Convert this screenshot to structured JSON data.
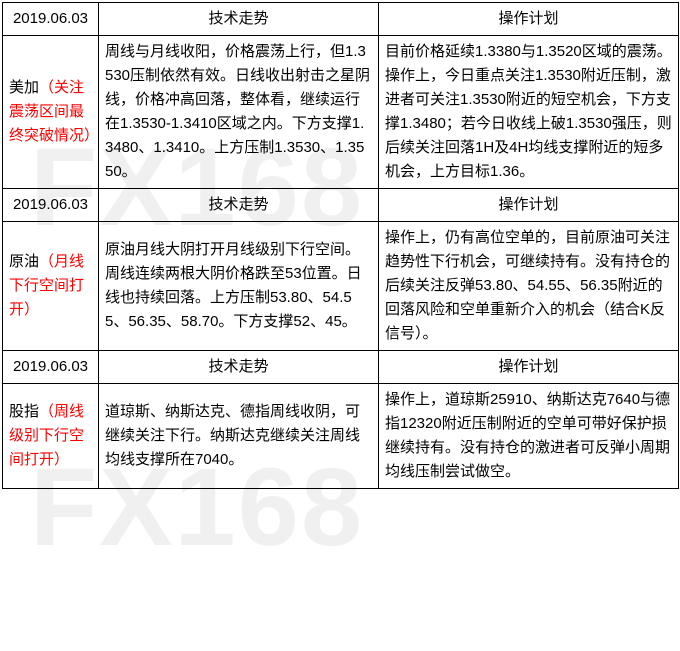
{
  "watermark_text": "FX168",
  "headers": {
    "tech": "技术走势",
    "plan": "操作计划"
  },
  "sections": [
    {
      "date": "2019.06.03",
      "label_black": "美加",
      "label_red": "（关注震荡区间最终突破情况）",
      "tech": "周线与月线收阳，价格震荡上行，但1.3530压制依然有效。日线收出射击之星阴线，价格冲高回落，整体看，继续运行在1.3530-1.3410区域之内。下方支撑1.3480、1.3410。上方压制1.3530、1.3550。",
      "plan": "目前价格延续1.3380与1.3520区域的震荡。操作上，今日重点关注1.3530附近压制，激进者可关注1.3530附近的短空机会，下方支撑1.3480；若今日收线上破1.3530强压，则后续关注回落1H及4H均线支撑附近的短多机会，上方目标1.36。"
    },
    {
      "date": "2019.06.03",
      "label_black": "原油",
      "label_red": "（月线下行空间打开）",
      "tech": "原油月线大阴打开月线级别下行空间。周线连续两根大阴价格跌至53位置。日线也持续回落。上方压制53.80、54.55、56.35、58.70。下方支撑52、45。",
      "plan": "操作上，仍有高位空单的，目前原油可关注趋势性下行机会，可继续持有。没有持仓的后续关注反弹53.80、54.55、56.35附近的回落风险和空单重新介入的机会（结合K反信号）。"
    },
    {
      "date": "2019.06.03",
      "label_black": "股指",
      "label_red": "（周线级别下行空间打开）",
      "tech": "道琼斯、纳斯达克、德指周线收阴，可继续关注下行。纳斯达克继续关注周线均线支撑所在7040。",
      "plan": "操作上，道琼斯25910、纳斯达克7640与德指12320附近压制附近的空单可带好保护损继续持有。没有持仓的激进者可反弹小周期均线压制尝试做空。"
    }
  ]
}
